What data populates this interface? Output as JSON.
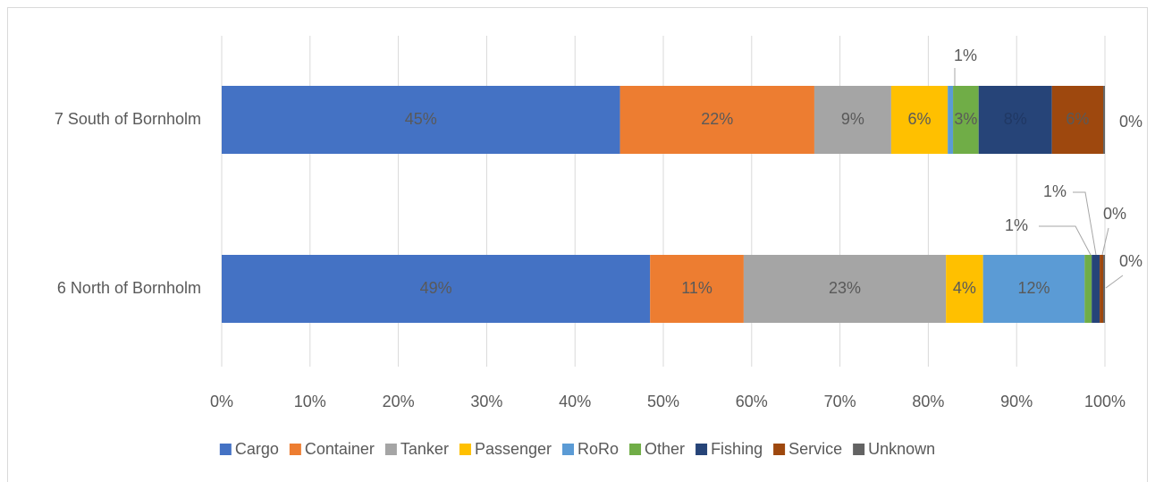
{
  "chart_data": {
    "type": "stacked_bar_horizontal_100",
    "categories": [
      "7 South of Bornholm",
      "6 North of Bornholm"
    ],
    "series": [
      {
        "name": "Cargo",
        "color": "#4472c4",
        "values": [
          45.1,
          48.5
        ],
        "value_labels": [
          "45%",
          "49%"
        ]
      },
      {
        "name": "Container",
        "color": "#ed7d31",
        "values": [
          22.0,
          10.6
        ],
        "value_labels": [
          "22%",
          "11%"
        ]
      },
      {
        "name": "Tanker",
        "color": "#a5a5a5",
        "values": [
          8.7,
          22.9
        ],
        "value_labels": [
          "9%",
          "23%"
        ]
      },
      {
        "name": "Passenger",
        "color": "#ffc000",
        "values": [
          6.4,
          4.2
        ],
        "value_labels": [
          "6%",
          "4%"
        ]
      },
      {
        "name": "RoRo",
        "color": "#5b9bd5",
        "values": [
          0.6,
          11.5
        ],
        "value_labels": [
          "1%",
          "12%"
        ]
      },
      {
        "name": "Other",
        "color": "#70ad47",
        "values": [
          2.9,
          0.8
        ],
        "value_labels": [
          "3%",
          "1%"
        ]
      },
      {
        "name": "Fishing",
        "color": "#264478",
        "values": [
          8.3,
          0.9
        ],
        "value_labels": [
          "8%",
          "1%"
        ]
      },
      {
        "name": "Service",
        "color": "#9e480e",
        "values": [
          5.8,
          0.4
        ],
        "value_labels": [
          "6%",
          "0%"
        ]
      },
      {
        "name": "Unknown",
        "color": "#636363",
        "values": [
          0.2,
          0.2
        ],
        "value_labels": [
          "0%",
          "0%"
        ]
      }
    ],
    "xlim": [
      0,
      100
    ],
    "xticks": [
      {
        "value": 0,
        "label": "0%"
      },
      {
        "value": 10,
        "label": "10%"
      },
      {
        "value": 20,
        "label": "20%"
      },
      {
        "value": 30,
        "label": "30%"
      },
      {
        "value": 40,
        "label": "40%"
      },
      {
        "value": 50,
        "label": "50%"
      },
      {
        "value": 60,
        "label": "60%"
      },
      {
        "value": 70,
        "label": "70%"
      },
      {
        "value": 80,
        "label": "80%"
      },
      {
        "value": 90,
        "label": "90%"
      },
      {
        "value": 100,
        "label": "100%"
      }
    ],
    "grid": true,
    "legend": "bottom"
  }
}
